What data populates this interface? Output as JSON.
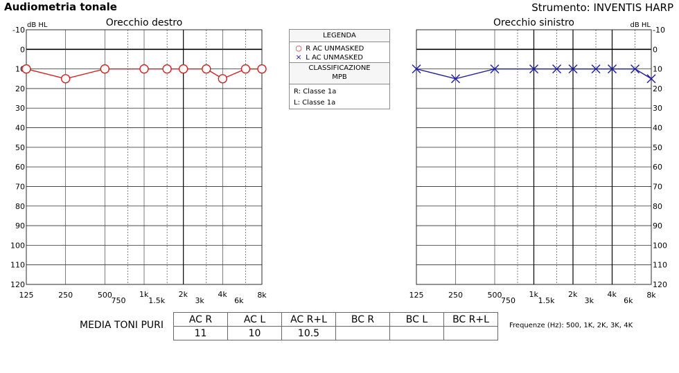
{
  "header": {
    "title": "Audiometria tonale",
    "instrument": "Strumento: INVENTIS HARP"
  },
  "legend": {
    "title": "LEGENDA",
    "items": [
      {
        "symbol": "○",
        "label": "R AC UNMASKED",
        "color": "#d02020"
      },
      {
        "symbol": "×",
        "label": "L AC UNMASKED",
        "color": "#2020a0"
      }
    ],
    "classification_title_1": "CLASSIFICAZIONE",
    "classification_title_2": "MPB",
    "classification": [
      "R: Classe 1a",
      "L: Classe 1a"
    ]
  },
  "media_toni_puri": {
    "label": "MEDIA TONI PURI",
    "headers": [
      "AC R",
      "AC L",
      "AC R+L",
      "BC R",
      "BC L",
      "BC R+L"
    ],
    "values": [
      "11",
      "10",
      "10.5",
      "",
      "",
      ""
    ],
    "frequencies_note": "Frequenze (Hz): 500, 1K, 2K, 3K, 4K"
  },
  "chart_data": [
    {
      "type": "line",
      "title": "Orecchio destro",
      "ylabel": "dB HL",
      "x_ticks": [
        "125",
        "250",
        "500",
        "750",
        "1k",
        "1.5k",
        "2k",
        "3k",
        "4k",
        "6k",
        "8k"
      ],
      "y_ticks": [
        "-10",
        "0",
        "10",
        "20",
        "30",
        "40",
        "50",
        "60",
        "70",
        "80",
        "90",
        "100",
        "110",
        "120"
      ],
      "ylim": [
        -10,
        120
      ],
      "y_inverted": true,
      "series": [
        {
          "color": "#d02020",
          "marker": "circle",
          "x": [
            125,
            250,
            500,
            1000,
            1500,
            2000,
            3000,
            4000,
            6000,
            8000
          ],
          "y": [
            10,
            15,
            10,
            10,
            10,
            10,
            10,
            15,
            10,
            10
          ]
        }
      ]
    },
    {
      "type": "line",
      "title": "Orecchio sinistro",
      "ylabel": "dB HL",
      "x_ticks": [
        "125",
        "250",
        "500",
        "750",
        "1k",
        "1.5k",
        "2k",
        "3k",
        "4k",
        "6k",
        "8k"
      ],
      "y_ticks": [
        "-10",
        "0",
        "10",
        "20",
        "30",
        "40",
        "50",
        "60",
        "70",
        "80",
        "90",
        "100",
        "110",
        "120"
      ],
      "ylim": [
        -10,
        120
      ],
      "y_inverted": true,
      "series": [
        {
          "color": "#2020a0",
          "marker": "cross",
          "x": [
            125,
            250,
            500,
            1000,
            1500,
            2000,
            3000,
            4000,
            6000,
            8000
          ],
          "y": [
            10,
            15,
            10,
            10,
            10,
            10,
            10,
            10,
            10,
            15
          ]
        }
      ]
    }
  ]
}
